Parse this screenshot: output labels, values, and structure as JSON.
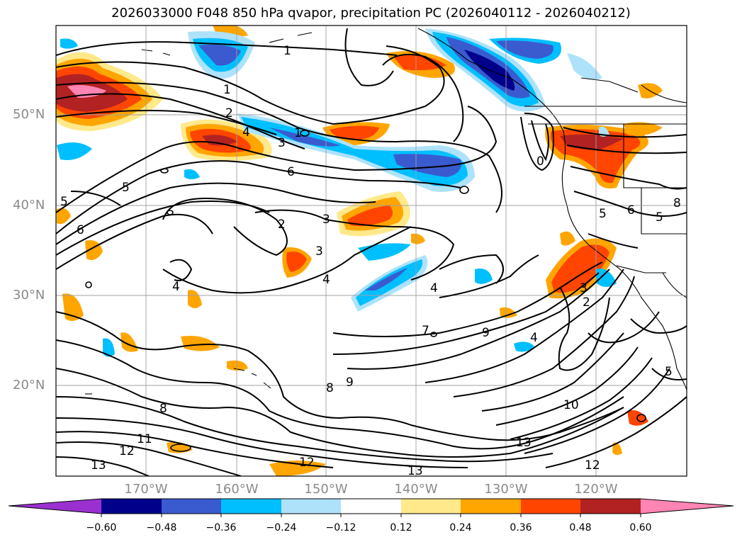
{
  "title": "2026033000 F048 850 hPa qvapor, precipitation PC (2026040112 - 2026040212)",
  "lat_labels": [
    "50°N",
    "40°N",
    "30°N",
    "20°N"
  ],
  "lon_labels": [
    "170°W",
    "160°W",
    "150°W",
    "140°W",
    "130°W",
    "120°W"
  ],
  "colorbar": {
    "ticks": [
      "−0.60",
      "−0.48",
      "−0.36",
      "−0.24",
      "−0.12",
      "0.12",
      "0.24",
      "0.36",
      "0.48",
      "0.60"
    ],
    "colors": [
      "#9b30d0",
      "#00008b",
      "#3a5bd0",
      "#00bfff",
      "#aee2fb",
      "#ffffff",
      "#ffe98a",
      "#ffa500",
      "#ff4500",
      "#b22222",
      "#ff85b4"
    ]
  },
  "contour_labels": [
    "1",
    "2",
    "3",
    "4",
    "5",
    "6",
    "6",
    "5",
    "3",
    "2",
    "3",
    "1",
    "4",
    "4",
    "4",
    "4",
    "9",
    "8",
    "9",
    "8",
    "11",
    "12",
    "13",
    "12",
    "13",
    "10",
    "13",
    "12",
    "7",
    "6",
    "5",
    "5",
    "3",
    "2",
    "0",
    "5",
    "8",
    "1"
  ]
}
